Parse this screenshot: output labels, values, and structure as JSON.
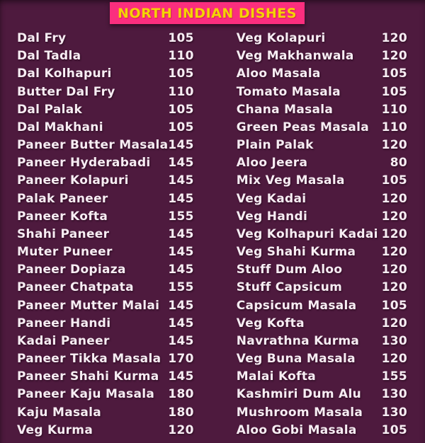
{
  "header": {
    "title": "NORTH INDIAN DISHES"
  },
  "colors": {
    "background": "#4e1a3e",
    "header_bg": "#fb2e7e",
    "header_text": "#f4d304",
    "item_text": "#f7edf3"
  },
  "menu": {
    "left_column": [
      {
        "name": "Dal Fry",
        "price": "105"
      },
      {
        "name": "Dal Tadla",
        "price": "110"
      },
      {
        "name": "Dal Kolhapuri",
        "price": "105"
      },
      {
        "name": "Butter Dal Fry",
        "price": "110"
      },
      {
        "name": "Dal Palak",
        "price": "105"
      },
      {
        "name": "Dal Makhani",
        "price": "105"
      },
      {
        "name": "Paneer Butter Masala",
        "price": "145"
      },
      {
        "name": "Paneer Hyderabadi",
        "price": "145"
      },
      {
        "name": "Paneer Kolapuri",
        "price": "145"
      },
      {
        "name": "Palak Paneer",
        "price": "145"
      },
      {
        "name": "Paneer Kofta",
        "price": "155"
      },
      {
        "name": "Shahi Paneer",
        "price": "145"
      },
      {
        "name": "Muter Puneer",
        "price": "145"
      },
      {
        "name": "Paneer Dopiaza",
        "price": "145"
      },
      {
        "name": "Paneer Chatpata",
        "price": "155"
      },
      {
        "name": "Paneer Mutter Malai",
        "price": "145"
      },
      {
        "name": "Paneer Handi",
        "price": "145"
      },
      {
        "name": "Kadai Paneer",
        "price": "145"
      },
      {
        "name": "Paneer Tikka Masala",
        "price": "170"
      },
      {
        "name": "Paneer Shahi Kurma",
        "price": "145"
      },
      {
        "name": "Paneer Kaju Masala",
        "price": "180"
      },
      {
        "name": "Kaju Masala",
        "price": "180"
      },
      {
        "name": "Veg Kurma",
        "price": "120"
      }
    ],
    "right_column": [
      {
        "name": "Veg Kolapuri",
        "price": "120"
      },
      {
        "name": "Veg Makhanwala",
        "price": "120"
      },
      {
        "name": "Aloo Masala",
        "price": "105"
      },
      {
        "name": "Tomato Masala",
        "price": "105"
      },
      {
        "name": "Chana Masala",
        "price": "110"
      },
      {
        "name": "Green Peas Masala",
        "price": "110"
      },
      {
        "name": "Plain Palak",
        "price": "120"
      },
      {
        "name": "Aloo Jeera",
        "price": "80"
      },
      {
        "name": "Mix Veg Masala",
        "price": "105"
      },
      {
        "name": "Veg Kadai",
        "price": "120"
      },
      {
        "name": "Veg Handi",
        "price": "120"
      },
      {
        "name": "Veg Kolhapuri Kadai",
        "price": "120"
      },
      {
        "name": "Veg Shahi Kurma",
        "price": "120"
      },
      {
        "name": "Stuff Dum Aloo",
        "price": "120"
      },
      {
        "name": "Stuff Capsicum",
        "price": "120"
      },
      {
        "name": "Capsicum Masala",
        "price": "105"
      },
      {
        "name": "Veg Kofta",
        "price": "120"
      },
      {
        "name": "Navrathna Kurma",
        "price": "130"
      },
      {
        "name": "Veg Buna Masala",
        "price": "120"
      },
      {
        "name": "Malai Kofta",
        "price": "155"
      },
      {
        "name": "Kashmiri Dum Alu",
        "price": "130"
      },
      {
        "name": "Mushroom Masala",
        "price": "130"
      },
      {
        "name": "Aloo Gobi Masala",
        "price": "105"
      }
    ]
  }
}
